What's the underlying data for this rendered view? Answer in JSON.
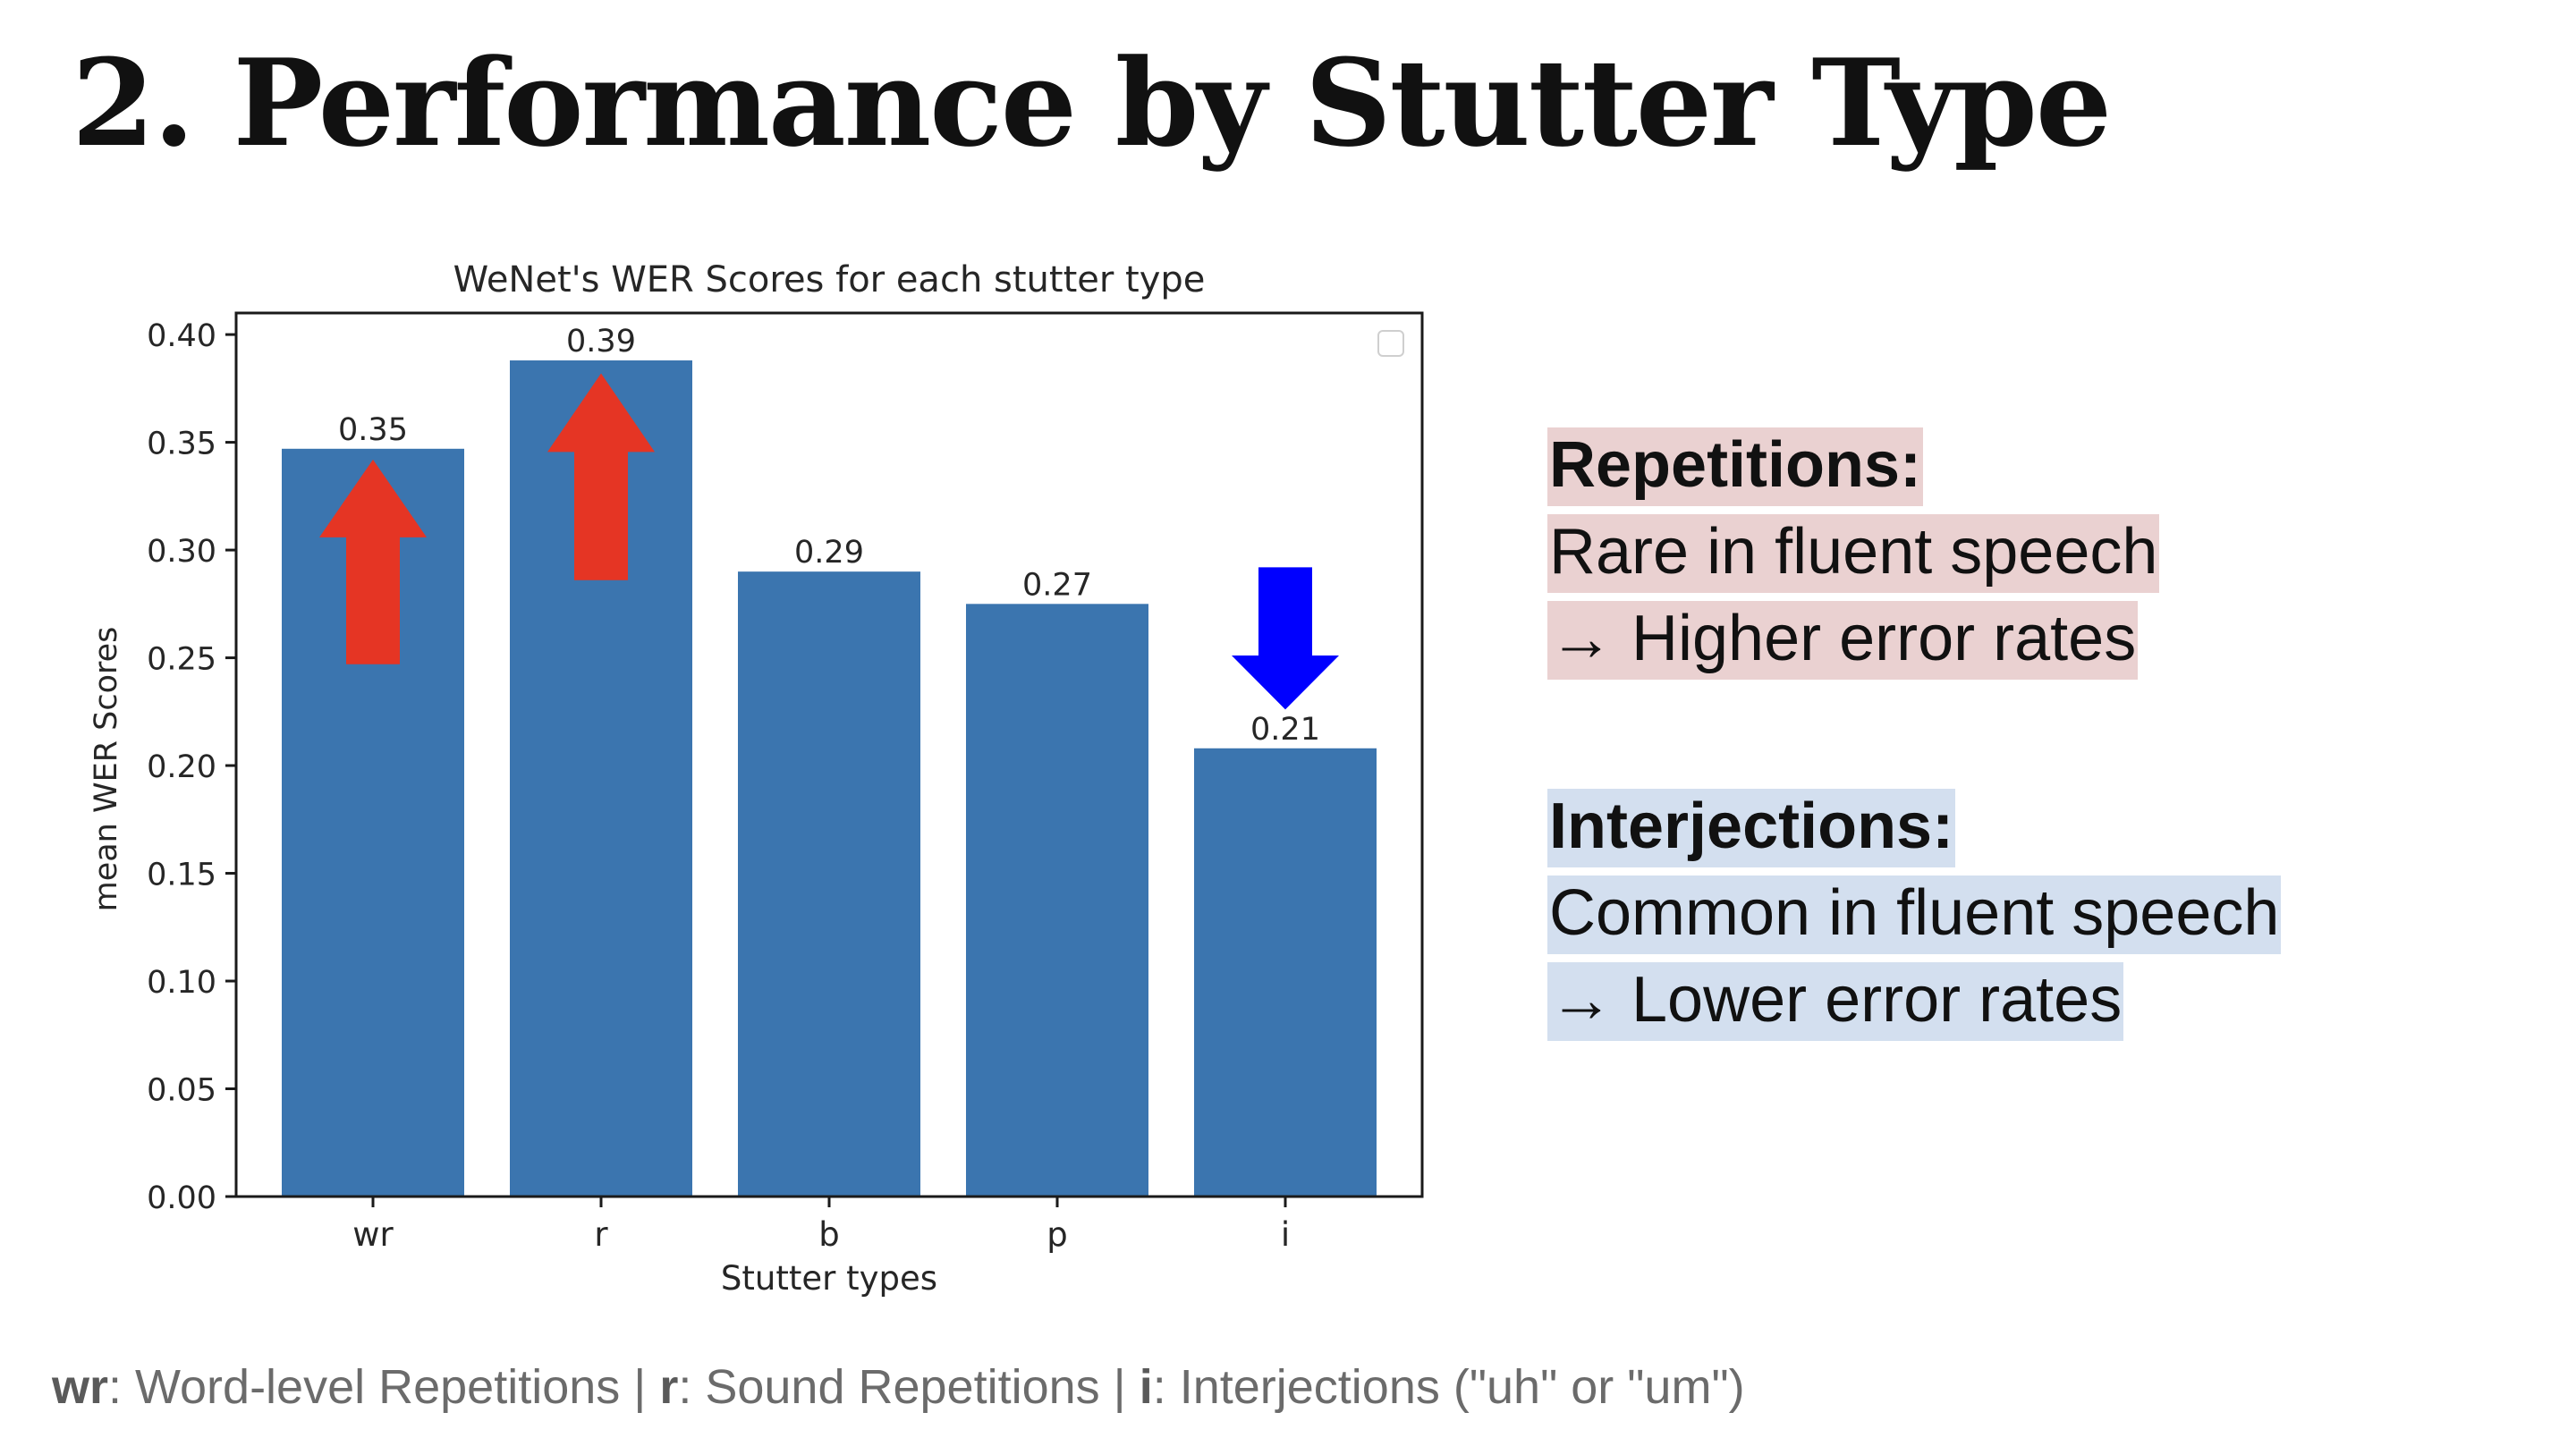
{
  "slide": {
    "title": "2. Performance by Stutter Type"
  },
  "chart_data": {
    "type": "bar",
    "title": "WeNet's WER Scores for each stutter type",
    "xlabel": "Stutter types",
    "ylabel": "mean WER Scores",
    "categories": [
      "wr",
      "r",
      "b",
      "p",
      "i"
    ],
    "values": [
      0.347,
      0.388,
      0.29,
      0.275,
      0.208
    ],
    "data_labels": [
      "0.35",
      "0.39",
      "0.29",
      "0.27",
      "0.21"
    ],
    "ylim": [
      0,
      0.41
    ],
    "yticks": [
      "0.00",
      "0.05",
      "0.10",
      "0.15",
      "0.20",
      "0.25",
      "0.30",
      "0.35",
      "0.40"
    ],
    "bar_color": "#3b75af",
    "grid": false,
    "legend": "top-right (empty)",
    "annotations": [
      {
        "category": "wr",
        "direction": "up",
        "color": "#e53524"
      },
      {
        "category": "r",
        "direction": "up",
        "color": "#e53524"
      },
      {
        "category": "i",
        "direction": "down",
        "color": "#0000ff"
      }
    ]
  },
  "callouts": {
    "repetitions": {
      "heading": "Repetitions:",
      "line1": "Rare in fluent speech",
      "line2": "→ Higher error rates"
    },
    "interjections": {
      "heading": "Interjections:",
      "line1": "Common in fluent speech",
      "line2": "→ Lower error rates"
    }
  },
  "footnote": {
    "wr_key": "wr",
    "wr_text": ": Word-level Repetitions | ",
    "r_key": "r",
    "r_text": ": Sound Repetitions | ",
    "i_key": "i",
    "i_text": ": Interjections (\"uh\" or \"um\")"
  },
  "colors": {
    "rep_highlight": "#ead1d1",
    "int_highlight": "#d3dfef"
  }
}
